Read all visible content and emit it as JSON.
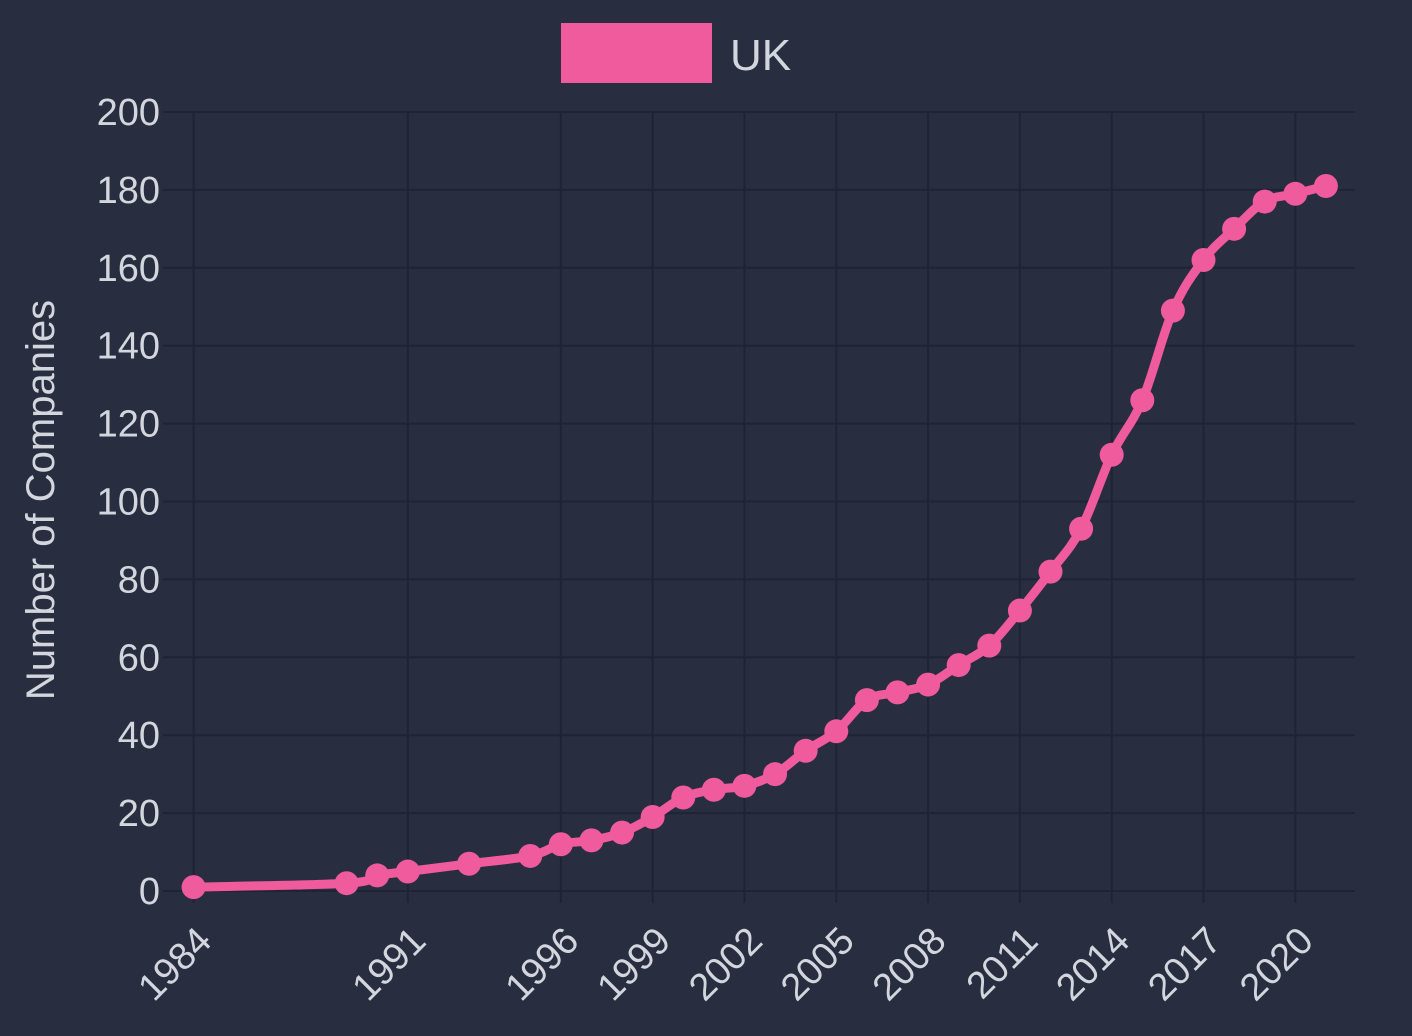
{
  "chart_data": {
    "type": "line",
    "title": "",
    "xlabel": "",
    "ylabel": "Number of Companies",
    "ylim": [
      0,
      200
    ],
    "yticks": [
      0,
      20,
      40,
      60,
      80,
      100,
      120,
      140,
      160,
      180,
      200
    ],
    "xtick_labels": [
      "1984",
      "1991",
      "1996",
      "1999",
      "2002",
      "2005",
      "2008",
      "2011",
      "2014",
      "2017",
      "2020"
    ],
    "legend_position": "top-center",
    "grid": true,
    "x": [
      "1984",
      "1989",
      "1990",
      "1991",
      "1993",
      "1995",
      "1996",
      "1997",
      "1998",
      "1999",
      "2000",
      "2001",
      "2002",
      "2003",
      "2004",
      "2005",
      "2006",
      "2007",
      "2008",
      "2009",
      "2010",
      "2011",
      "2012",
      "2013",
      "2014",
      "2015",
      "2016",
      "2017",
      "2018",
      "2019",
      "2020",
      "2021"
    ],
    "series": [
      {
        "name": "UK",
        "color": "#ef5b9c",
        "values": [
          1,
          2,
          4,
          5,
          7,
          9,
          12,
          13,
          15,
          19,
          24,
          26,
          27,
          30,
          36,
          41,
          49,
          51,
          53,
          58,
          63,
          72,
          82,
          93,
          112,
          126,
          149,
          162,
          170,
          177,
          179,
          181
        ]
      }
    ]
  }
}
